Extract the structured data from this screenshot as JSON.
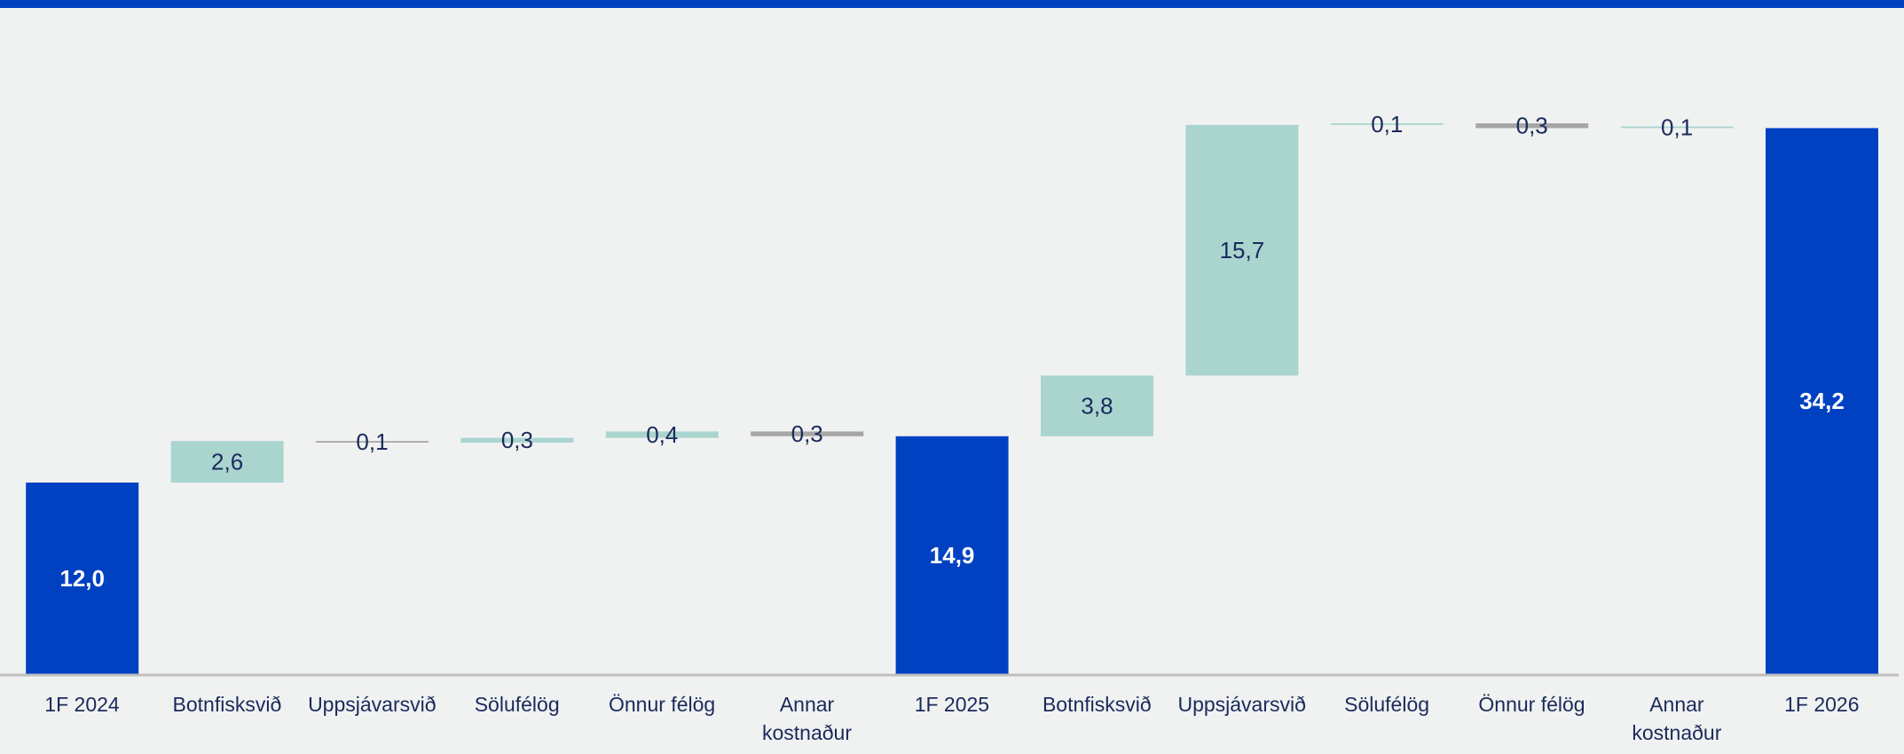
{
  "chart_data": {
    "type": "waterfall",
    "categories": [
      "1F 2024",
      "Botnfisksvið",
      "Uppsjávarsvið",
      "Sölufélög",
      "Önnur félög",
      "Annar kostnaður",
      "1F 2025",
      "Botnfisksvið",
      "Uppsjávarsvið",
      "Sölufélög",
      "Önnur félög",
      "Annar kostnaður",
      "1F 2026"
    ],
    "values": [
      12.0,
      2.6,
      0.1,
      0.3,
      0.4,
      0.3,
      14.9,
      3.8,
      15.7,
      0.1,
      0.3,
      0.1,
      34.2
    ],
    "value_labels": [
      "12,0",
      "2,6",
      "0,1",
      "0,3",
      "0,4",
      "0,3",
      "14,9",
      "3,8",
      "15,7",
      "0,1",
      "0,3",
      "0,1",
      "34,2"
    ],
    "kinds": [
      "total",
      "increase",
      "decrease",
      "increase",
      "increase",
      "decrease",
      "total",
      "increase",
      "increase",
      "increase",
      "decrease",
      "increase",
      "total"
    ],
    "colors": {
      "total": "#0041c2",
      "increase": "#aad5cf",
      "decrease": "#a6a6a6"
    },
    "ylim": [
      0,
      35
    ]
  }
}
